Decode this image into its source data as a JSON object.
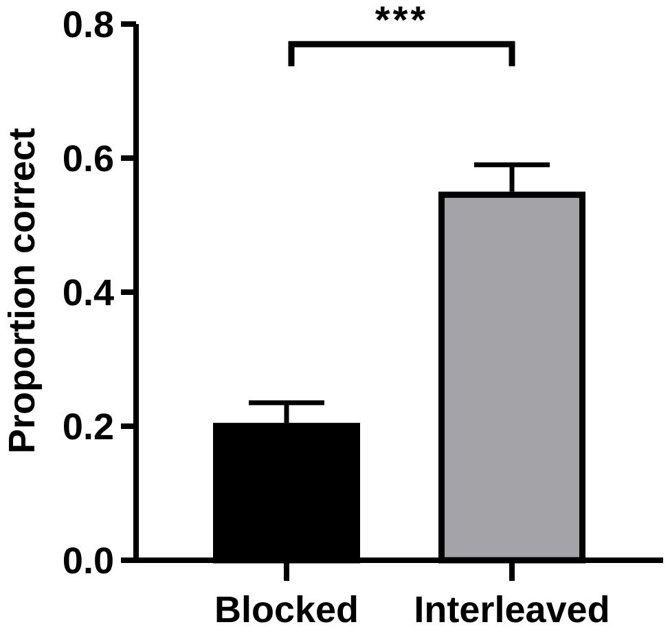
{
  "chart_data": {
    "type": "bar",
    "title": "",
    "xlabel": "",
    "ylabel": "Proportion correct",
    "ylim": [
      0,
      0.8
    ],
    "yticks": [
      0.0,
      0.2,
      0.4,
      0.6,
      0.8
    ],
    "ytick_labels": [
      "0.0",
      "0.2",
      "0.4",
      "0.6",
      "0.8"
    ],
    "categories": [
      "Blocked",
      "Interleaved"
    ],
    "values": [
      0.205,
      0.55
    ],
    "error_upper": [
      0.235,
      0.59
    ],
    "colors": [
      "#000000",
      "#a4a4a8"
    ],
    "grid": false,
    "legend": "none",
    "significance": {
      "label": "***",
      "between": [
        "Blocked",
        "Interleaved"
      ],
      "bracket_y": 0.77,
      "bracket_drop_to": 0.737
    }
  }
}
